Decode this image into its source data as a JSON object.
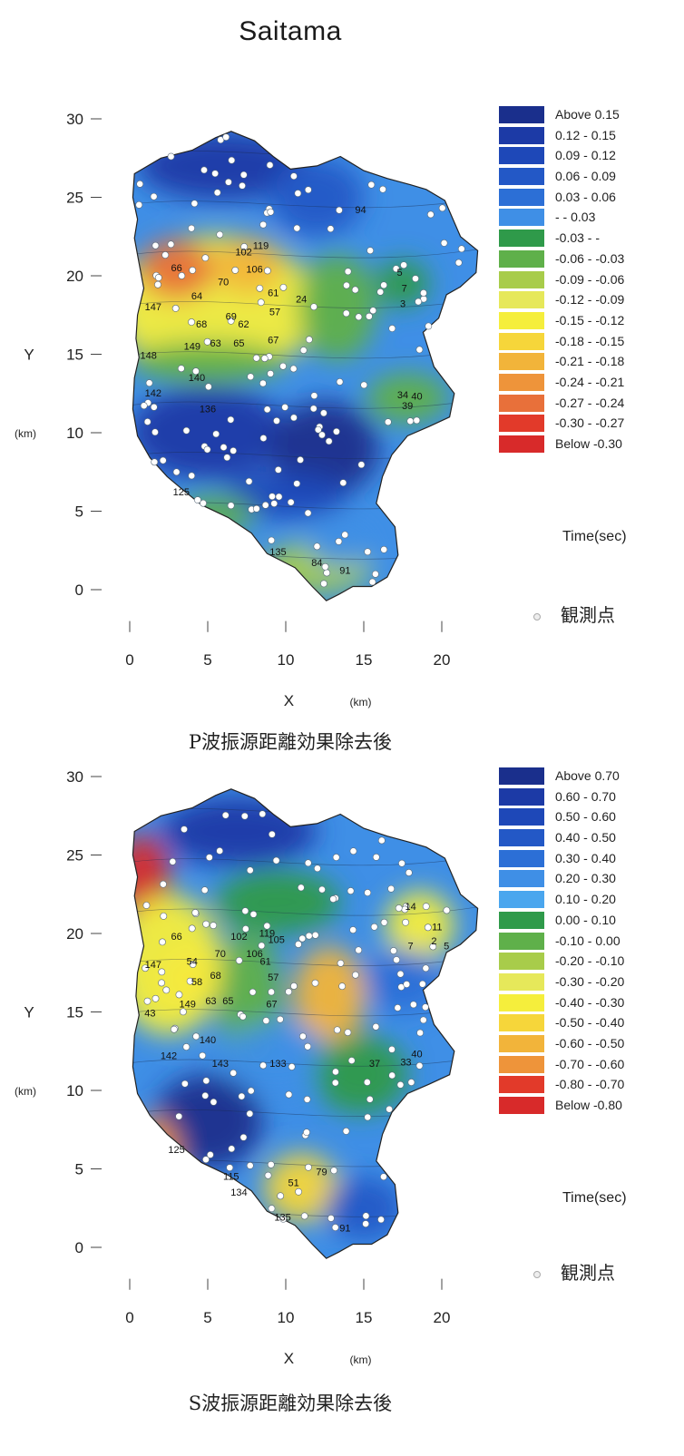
{
  "title": "Saitama",
  "chart_data": [
    {
      "type": "heatmap",
      "caption": "P波振源距離効果除去後",
      "xlabel": "X",
      "xunit": "(km)",
      "ylabel": "Y",
      "yunit": "(km)",
      "xlim": [
        0,
        20
      ],
      "ylim": [
        0,
        30
      ],
      "x_ticks": [
        "0",
        "5",
        "10",
        "15",
        "20"
      ],
      "y_ticks": [
        "0",
        "5",
        "10",
        "15",
        "20",
        "25",
        "30"
      ],
      "legend_unit": "Time(sec)",
      "station_legend": "観測点",
      "legend": [
        {
          "label": "Above   0.15",
          "color": "#1a2f8c"
        },
        {
          "label": "0.12 -  0.15",
          "color": "#1c3aa6"
        },
        {
          "label": "0.09 -  0.12",
          "color": "#1e48b8"
        },
        {
          "label": "0.06 -  0.09",
          "color": "#2358c6"
        },
        {
          "label": "0.03 -  0.06",
          "color": "#2c6fd6"
        },
        {
          "label": "- -  0.03",
          "color": "#3f8fe6"
        },
        {
          "label": "-0.03 -     -",
          "color": "#2f9a4a"
        },
        {
          "label": "-0.06 - -0.03",
          "color": "#5fb04a"
        },
        {
          "label": "-0.09 - -0.06",
          "color": "#a8cc4a"
        },
        {
          "label": "-0.12 - -0.09",
          "color": "#e6e85a"
        },
        {
          "label": "-0.15 - -0.12",
          "color": "#f5ee3c"
        },
        {
          "label": "-0.18 - -0.15",
          "color": "#f6d63a"
        },
        {
          "label": "-0.21 - -0.18",
          "color": "#f2b43a"
        },
        {
          "label": "-0.24 - -0.21",
          "color": "#ee943a"
        },
        {
          "label": "-0.27 - -0.24",
          "color": "#e8703a"
        },
        {
          "label": "-0.30 - -0.27",
          "color": "#e23a2a"
        },
        {
          "label": "Below  -0.30",
          "color": "#d82a2a"
        }
      ],
      "zones": [
        {
          "level": "-0.27 - -0.24",
          "x": 3,
          "y": 20.5
        },
        {
          "level": "-0.21 - -0.18",
          "x": 7.5,
          "y": 20.5
        },
        {
          "level": "Above   0.15",
          "x": 13,
          "y": 9
        },
        {
          "level": "0.12 -  0.15",
          "x": 8,
          "y": 26
        },
        {
          "level": "-0.03 -     -",
          "x": 18,
          "y": 11.5
        }
      ],
      "station_labels": [
        {
          "text": "66",
          "x": 3,
          "y": 20.3
        },
        {
          "text": "102",
          "x": 7.3,
          "y": 21.3
        },
        {
          "text": "106",
          "x": 8,
          "y": 20.2
        },
        {
          "text": "119",
          "x": 8.4,
          "y": 21.7
        },
        {
          "text": "70",
          "x": 6,
          "y": 19.4
        },
        {
          "text": "64",
          "x": 4.3,
          "y": 18.5
        },
        {
          "text": "147",
          "x": 1.5,
          "y": 17.8
        },
        {
          "text": "68",
          "x": 4.6,
          "y": 16.7
        },
        {
          "text": "69",
          "x": 6.5,
          "y": 17.2
        },
        {
          "text": "62",
          "x": 7.3,
          "y": 16.7
        },
        {
          "text": "61",
          "x": 9.2,
          "y": 18.7
        },
        {
          "text": "57",
          "x": 9.3,
          "y": 17.5
        },
        {
          "text": "65",
          "x": 7,
          "y": 15.5
        },
        {
          "text": "63",
          "x": 5.5,
          "y": 15.5
        },
        {
          "text": "67",
          "x": 9.2,
          "y": 15.7
        },
        {
          "text": "149",
          "x": 4,
          "y": 15.3
        },
        {
          "text": "148",
          "x": 1.2,
          "y": 14.7
        },
        {
          "text": "24",
          "x": 11,
          "y": 18.3
        },
        {
          "text": "140",
          "x": 4.3,
          "y": 13.3
        },
        {
          "text": "142",
          "x": 1.5,
          "y": 12.3
        },
        {
          "text": "136",
          "x": 5,
          "y": 11.3
        },
        {
          "text": "125",
          "x": 3.3,
          "y": 6
        },
        {
          "text": "135",
          "x": 9.5,
          "y": 2.2
        },
        {
          "text": "91",
          "x": 13.8,
          "y": 1
        },
        {
          "text": "84",
          "x": 12,
          "y": 1.5
        },
        {
          "text": "40",
          "x": 18.4,
          "y": 12.1
        },
        {
          "text": "39",
          "x": 17.8,
          "y": 11.5
        },
        {
          "text": "34",
          "x": 17.5,
          "y": 12.2
        },
        {
          "text": "94",
          "x": 14.8,
          "y": 24
        },
        {
          "text": "5",
          "x": 17.3,
          "y": 20
        },
        {
          "text": "7",
          "x": 17.6,
          "y": 19
        },
        {
          "text": "3",
          "x": 17.5,
          "y": 18
        }
      ],
      "stations": "white dots (observation points)"
    },
    {
      "type": "heatmap",
      "caption": "S波振源距離効果除去後",
      "xlabel": "X",
      "xunit": "(km)",
      "ylabel": "Y",
      "yunit": "(km)",
      "xlim": [
        0,
        20
      ],
      "ylim": [
        0,
        30
      ],
      "x_ticks": [
        "0",
        "5",
        "10",
        "15",
        "20"
      ],
      "y_ticks": [
        "0",
        "5",
        "10",
        "15",
        "20",
        "25",
        "30"
      ],
      "legend_unit": "Time(sec)",
      "station_legend": "観測点",
      "legend": [
        {
          "label": "Above   0.70",
          "color": "#1a2f8c"
        },
        {
          "label": "0.60 -  0.70",
          "color": "#1c3aa6"
        },
        {
          "label": "0.50 -  0.60",
          "color": "#1e48b8"
        },
        {
          "label": "0.40 -  0.50",
          "color": "#2358c6"
        },
        {
          "label": "0.30 -  0.40",
          "color": "#2c6fd6"
        },
        {
          "label": "0.20 -  0.30",
          "color": "#3f8fe6"
        },
        {
          "label": "0.10 -  0.20",
          "color": "#4aa6ee"
        },
        {
          "label": "0.00 -  0.10",
          "color": "#2f9a4a"
        },
        {
          "label": "-0.10 -  0.00",
          "color": "#5fb04a"
        },
        {
          "label": "-0.20 - -0.10",
          "color": "#a8cc4a"
        },
        {
          "label": "-0.30 - -0.20",
          "color": "#e6e85a"
        },
        {
          "label": "-0.40 - -0.30",
          "color": "#f5ee3c"
        },
        {
          "label": "-0.50 - -0.40",
          "color": "#f6d63a"
        },
        {
          "label": "-0.60 - -0.50",
          "color": "#f2b43a"
        },
        {
          "label": "-0.70 - -0.60",
          "color": "#ee943a"
        },
        {
          "label": "-0.80 - -0.70",
          "color": "#e23a2a"
        },
        {
          "label": "Below  -0.80",
          "color": "#d82a2a"
        }
      ],
      "zones": [
        {
          "level": "Below  -0.80",
          "x": 1,
          "y": 23.5
        },
        {
          "level": "-0.70 - -0.60",
          "x": 4,
          "y": 17
        },
        {
          "level": "-0.60 - -0.50",
          "x": 12.5,
          "y": 16
        },
        {
          "level": "-0.50 - -0.40",
          "x": 11,
          "y": 4
        },
        {
          "level": "-0.40 - -0.30",
          "x": 18.5,
          "y": 20.5
        },
        {
          "level": "0.60 -  0.70",
          "x": 8,
          "y": 26.5
        },
        {
          "level": "Above   0.70",
          "x": 5,
          "y": 8
        }
      ],
      "station_labels": [
        {
          "text": "66",
          "x": 3,
          "y": 19.6
        },
        {
          "text": "102",
          "x": 7,
          "y": 19.6
        },
        {
          "text": "119",
          "x": 8.8,
          "y": 19.8
        },
        {
          "text": "105",
          "x": 9.4,
          "y": 19.4
        },
        {
          "text": "106",
          "x": 8,
          "y": 18.5
        },
        {
          "text": "70",
          "x": 5.8,
          "y": 18.5
        },
        {
          "text": "147",
          "x": 1.5,
          "y": 17.8
        },
        {
          "text": "54",
          "x": 4,
          "y": 18
        },
        {
          "text": "58",
          "x": 4.3,
          "y": 16.7
        },
        {
          "text": "68",
          "x": 5.5,
          "y": 17.1
        },
        {
          "text": "61",
          "x": 8.7,
          "y": 18
        },
        {
          "text": "57",
          "x": 9.2,
          "y": 17
        },
        {
          "text": "67",
          "x": 9.1,
          "y": 15.3
        },
        {
          "text": "63",
          "x": 5.2,
          "y": 15.5
        },
        {
          "text": "65",
          "x": 6.3,
          "y": 15.5
        },
        {
          "text": "149",
          "x": 3.7,
          "y": 15.3
        },
        {
          "text": "43",
          "x": 1.3,
          "y": 14.7
        },
        {
          "text": "142",
          "x": 2.5,
          "y": 12
        },
        {
          "text": "140",
          "x": 5,
          "y": 13
        },
        {
          "text": "143",
          "x": 5.8,
          "y": 11.5
        },
        {
          "text": "133",
          "x": 9.5,
          "y": 11.5
        },
        {
          "text": "125",
          "x": 3,
          "y": 6
        },
        {
          "text": "115",
          "x": 6.5,
          "y": 4.3
        },
        {
          "text": "134",
          "x": 7,
          "y": 3.3
        },
        {
          "text": "135",
          "x": 9.8,
          "y": 1.7
        },
        {
          "text": "51",
          "x": 10.5,
          "y": 3.9
        },
        {
          "text": "79",
          "x": 12.3,
          "y": 4.6
        },
        {
          "text": "91",
          "x": 13.8,
          "y": 1
        },
        {
          "text": "14",
          "x": 18,
          "y": 21.5
        },
        {
          "text": "11",
          "x": 19.7,
          "y": 20.2
        },
        {
          "text": "5",
          "x": 20.3,
          "y": 19
        },
        {
          "text": "2",
          "x": 19.5,
          "y": 19.3
        },
        {
          "text": "7",
          "x": 18,
          "y": 19
        },
        {
          "text": "40",
          "x": 18.4,
          "y": 12.1
        },
        {
          "text": "33",
          "x": 17.7,
          "y": 11.6
        },
        {
          "text": "37",
          "x": 15.7,
          "y": 11.5
        }
      ],
      "stations": "white dots (observation points)"
    }
  ]
}
